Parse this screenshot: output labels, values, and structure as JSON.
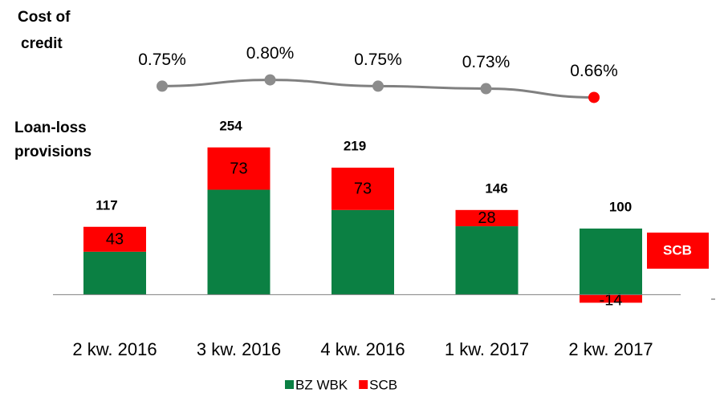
{
  "chart_data": {
    "type": "bar",
    "line_title": [
      "Cost of",
      "credit"
    ],
    "bar_title": [
      "Loan-loss",
      "provisions"
    ],
    "categories": [
      "2 kw. 2016",
      "3 kw. 2016",
      "4 kw. 2016",
      "1 kw. 2017",
      "2 kw. 2017"
    ],
    "series": [
      {
        "name": "BZ WBK",
        "color": "#0b8043",
        "values": [
          74,
          181,
          146,
          118,
          114
        ]
      },
      {
        "name": "SCB",
        "color": "#ff0000",
        "values": [
          43,
          73,
          73,
          28,
          -14
        ]
      }
    ],
    "totals": [
      117,
      254,
      219,
      146,
      100
    ],
    "ylim": [
      -30,
      280
    ],
    "line": {
      "type": "line",
      "color": "#808080",
      "marker_color": "#8c8c8c",
      "last_marker_color": "#ff0000",
      "values": [
        0.75,
        0.8,
        0.75,
        0.73,
        0.66
      ],
      "value_labels": [
        "0.75%",
        "0.80%",
        "0.75%",
        "0.73%",
        "0.66%"
      ],
      "y2lim": [
        0.4,
        0.9
      ]
    },
    "annotation": "SCB",
    "annotation_color": "#ff0000"
  }
}
